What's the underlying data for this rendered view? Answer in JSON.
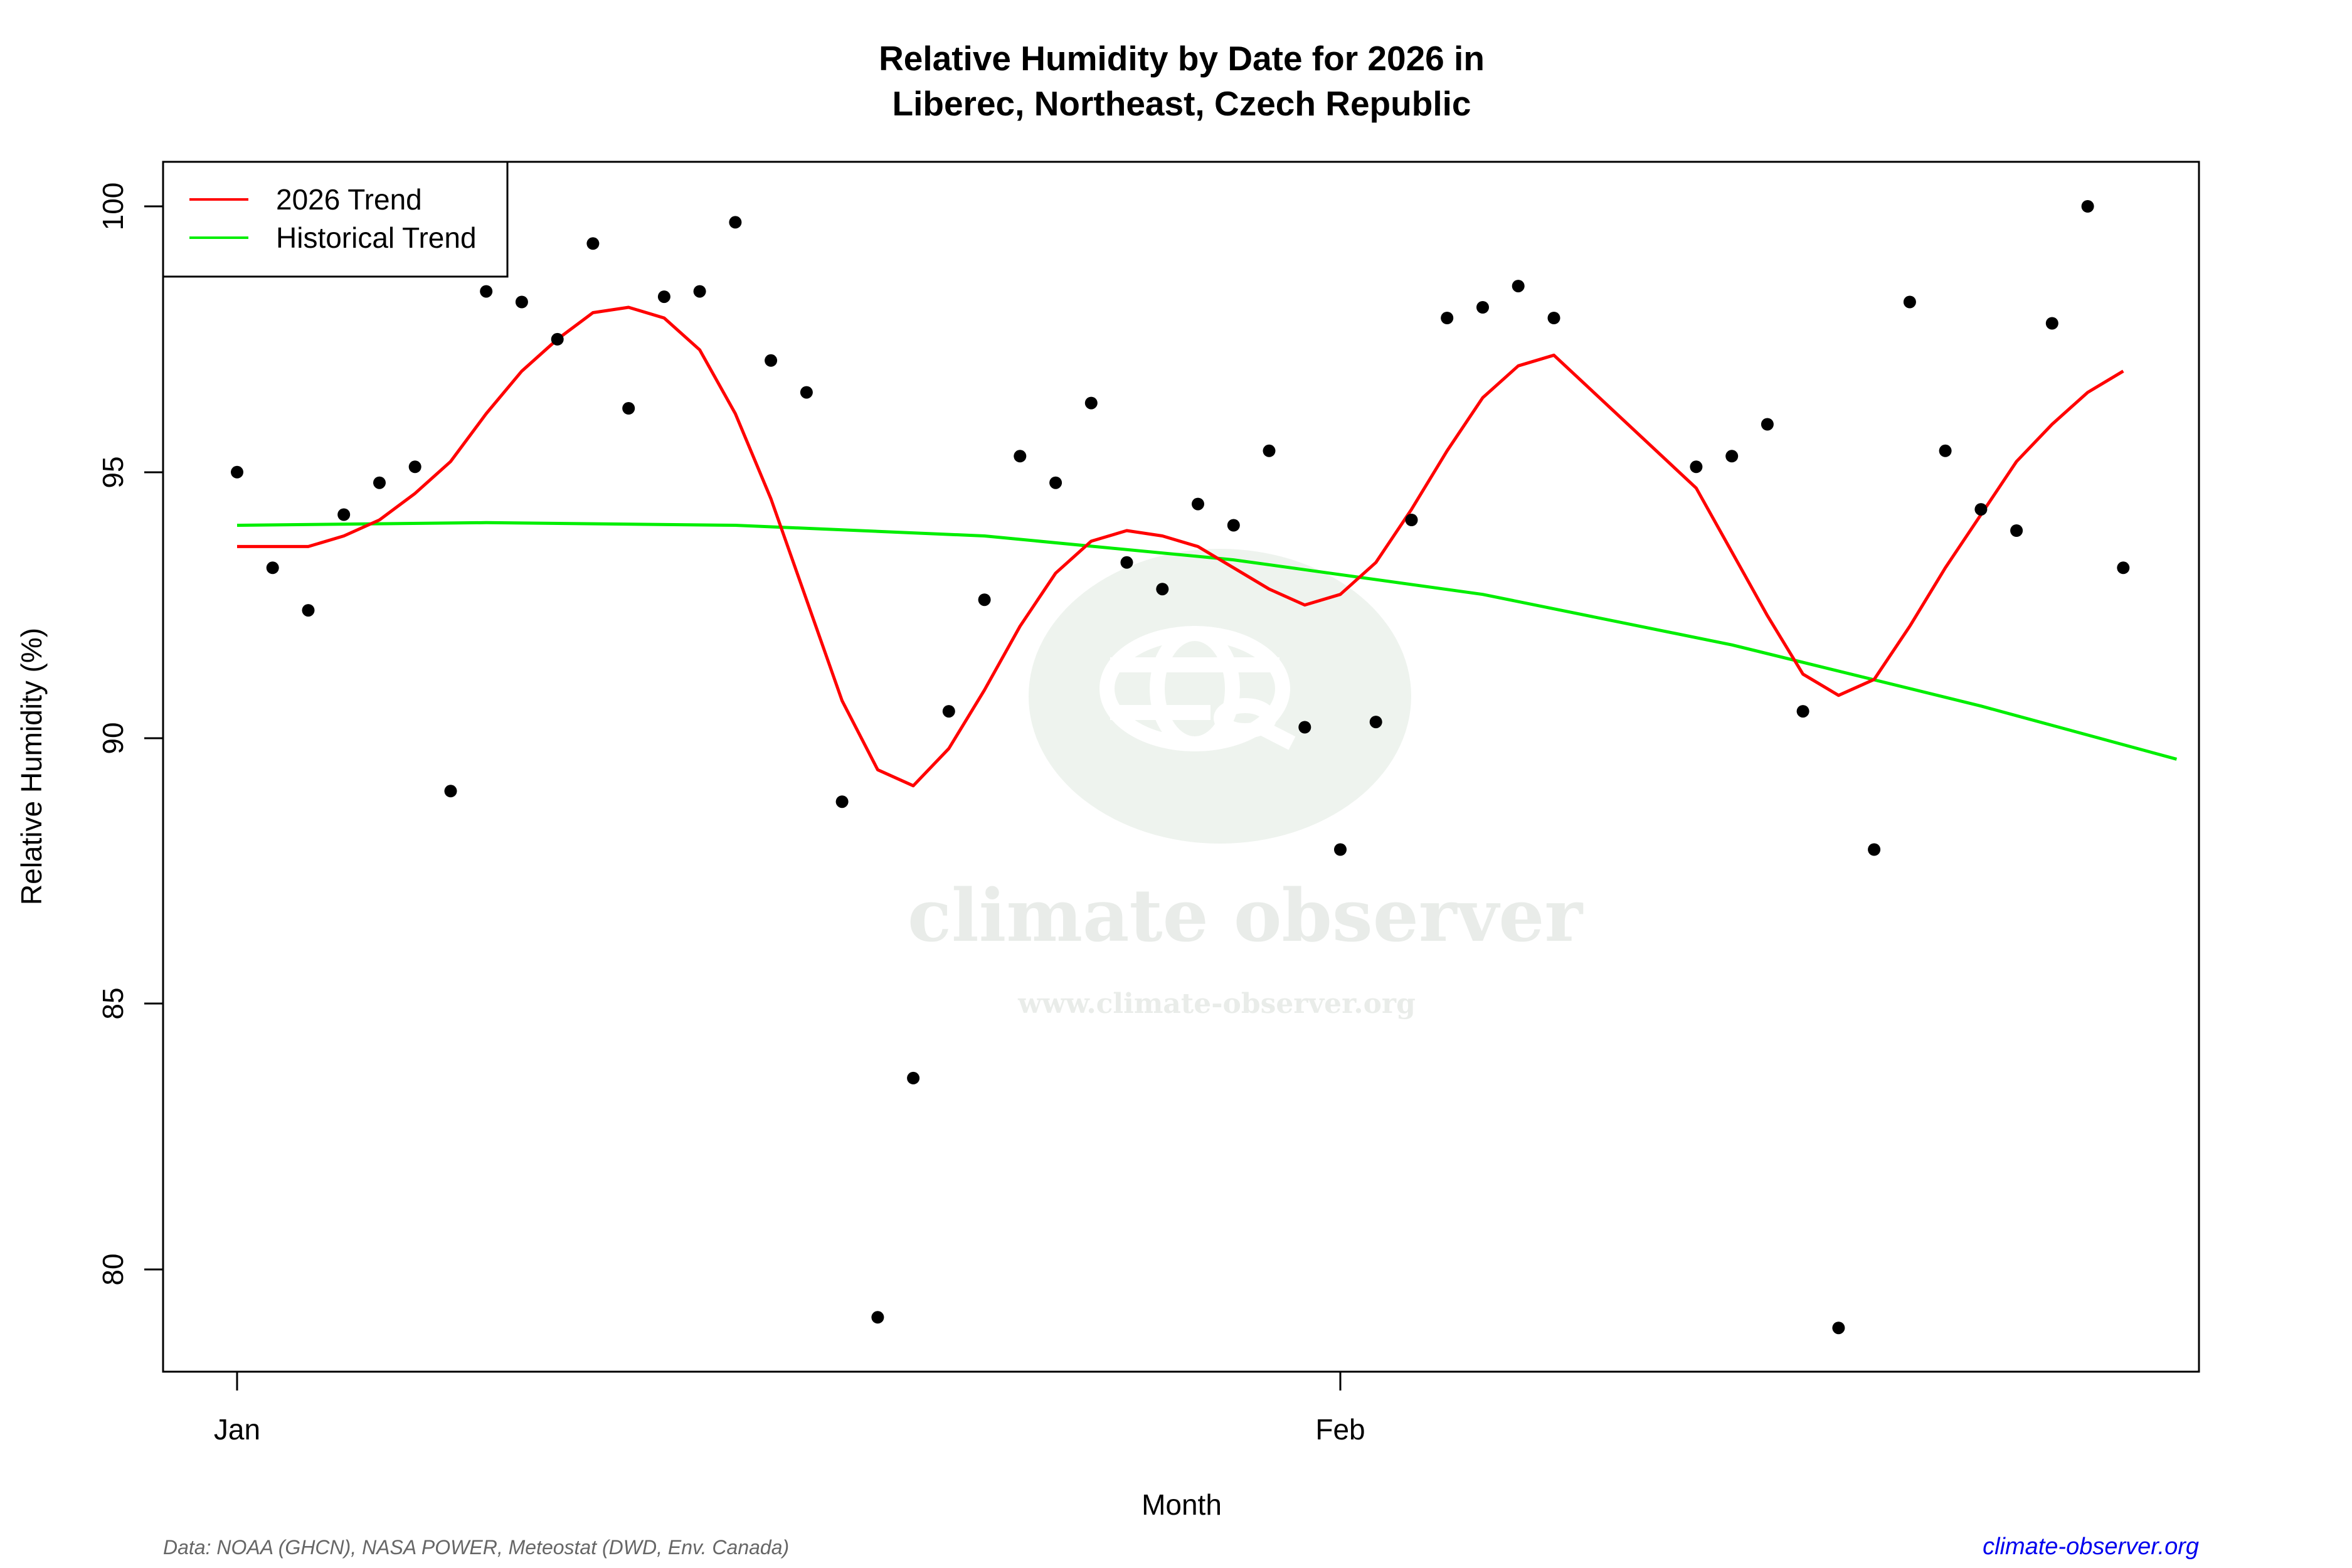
{
  "chart_data": {
    "type": "scatter",
    "title": "Relative Humidity by Date for 2026 in\nLiberec, Northeast, Czech Republic",
    "title_lines": [
      "Relative Humidity by Date for 2026 in",
      "Liberec, Northeast, Czech Republic"
    ],
    "xlabel": "Month",
    "ylabel": "Relative Humidity (%)",
    "ylim": [
      78,
      101
    ],
    "yticks": [
      80,
      85,
      90,
      95,
      100
    ],
    "xticks": [
      {
        "label": "Jan",
        "day": 1
      },
      {
        "label": "Feb",
        "day": 32
      }
    ],
    "grid": false,
    "legend_position": "top-left",
    "legend": [
      {
        "label": "2026 Trend",
        "color": "#ff0000"
      },
      {
        "label": "Historical Trend",
        "color": "#00ee00"
      }
    ],
    "series": [
      {
        "name": "Daily observations",
        "kind": "points",
        "color": "#000000",
        "x": [
          1,
          2,
          3,
          4,
          5,
          6,
          7,
          8,
          9,
          10,
          11,
          12,
          13,
          14,
          15,
          16,
          17,
          18,
          19,
          20,
          21,
          22,
          23,
          24,
          25,
          26,
          27,
          28,
          29,
          30,
          31,
          32,
          33,
          34,
          35,
          36,
          37,
          38,
          42,
          43,
          44,
          45,
          46,
          47,
          48,
          49,
          50,
          51,
          52,
          53,
          54
        ],
        "values": [
          95.0,
          93.2,
          92.4,
          94.2,
          94.8,
          95.1,
          89.0,
          98.4,
          98.2,
          97.5,
          99.3,
          96.2,
          98.3,
          98.4,
          99.7,
          97.1,
          96.5,
          88.8,
          79.1,
          83.6,
          90.5,
          92.6,
          95.3,
          94.8,
          96.3,
          93.3,
          92.8,
          94.4,
          94.0,
          95.4,
          90.2,
          87.9,
          90.3,
          94.1,
          97.9,
          98.1,
          98.5,
          97.9,
          95.1,
          95.3,
          95.9,
          90.5,
          78.9,
          87.9,
          98.2,
          95.4,
          94.3,
          93.9,
          97.8,
          100.0,
          93.2
        ]
      },
      {
        "name": "2026 Trend",
        "kind": "line",
        "color": "#ff0000",
        "x": [
          1,
          2,
          3,
          4,
          5,
          6,
          7,
          8,
          9,
          10,
          11,
          12,
          13,
          14,
          15,
          16,
          17,
          18,
          19,
          20,
          21,
          22,
          23,
          24,
          25,
          26,
          27,
          28,
          29,
          30,
          31,
          32,
          33,
          34,
          35,
          36,
          37,
          38,
          42,
          43,
          44,
          45,
          46,
          47,
          48,
          49,
          50,
          51,
          52,
          53,
          54
        ],
        "values": [
          93.6,
          93.6,
          93.6,
          93.8,
          94.1,
          94.6,
          95.2,
          96.1,
          96.9,
          97.5,
          98.0,
          98.1,
          97.9,
          97.3,
          96.1,
          94.5,
          92.6,
          90.7,
          89.4,
          89.1,
          89.8,
          90.9,
          92.1,
          93.1,
          93.7,
          93.9,
          93.8,
          93.6,
          93.2,
          92.8,
          92.5,
          92.7,
          93.3,
          94.3,
          95.4,
          96.4,
          97.0,
          97.2,
          94.7,
          93.5,
          92.3,
          91.2,
          90.8,
          91.1,
          92.1,
          93.2,
          94.2,
          95.2,
          95.9,
          96.5,
          96.9
        ]
      },
      {
        "name": "Historical Trend",
        "kind": "line",
        "color": "#00ee00",
        "x": [
          1,
          8,
          15,
          22,
          29,
          36,
          43,
          50,
          55.5
        ],
        "values": [
          94.0,
          94.05,
          94.0,
          93.8,
          93.35,
          92.7,
          91.75,
          90.6,
          89.6
        ]
      }
    ]
  },
  "footer": {
    "source": "Data: NOAA (GHCN), NASA POWER, Meteostat (DWD, Env. Canada)",
    "site": "climate-observer.org"
  },
  "watermark": {
    "name": "climate observer",
    "url": "www.climate-observer.org"
  }
}
